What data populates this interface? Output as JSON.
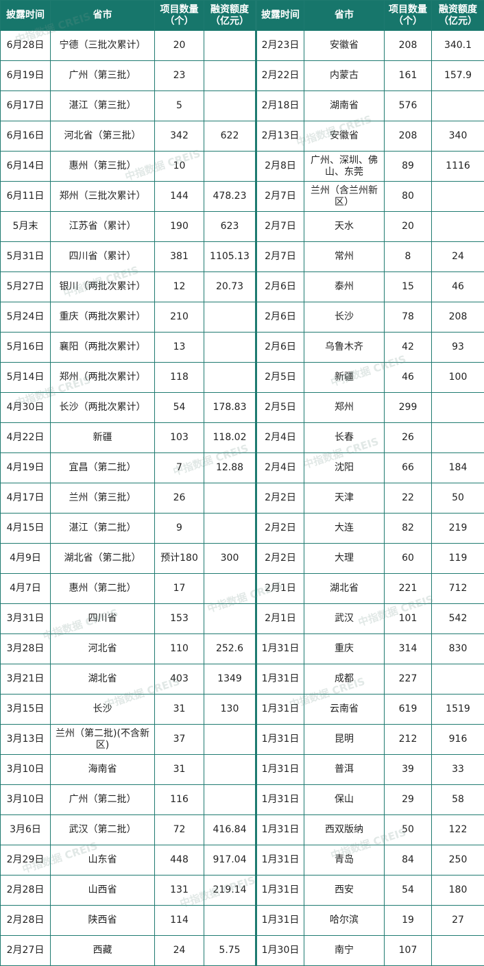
{
  "table": {
    "header": [
      [
        "披露时间"
      ],
      [
        "省市"
      ],
      [
        "项目数量",
        "（个）"
      ],
      [
        "融资额度",
        "（亿元）"
      ],
      [
        "披露时间"
      ],
      [
        "省市"
      ],
      [
        "项目数量",
        "（个）"
      ],
      [
        "融资额度",
        "（亿元）"
      ]
    ],
    "rows": [
      [
        "6月28日",
        "宁德（三批次累计）",
        20,
        null,
        "2月23日",
        "安徽省",
        208,
        340.1
      ],
      [
        "6月19日",
        "广州（第三批）",
        23,
        null,
        "2月22日",
        "内蒙古",
        161,
        157.9
      ],
      [
        "6月17日",
        "湛江（第三批）",
        5,
        null,
        "2月18日",
        "湖南省",
        576,
        null
      ],
      [
        "6月16日",
        "河北省（第三批）",
        342,
        622,
        "2月13日",
        "安徽省",
        208,
        340
      ],
      [
        "6月14日",
        "惠州（第三批）",
        10,
        null,
        "2月8日",
        "广州、深圳、佛山、东莞",
        89,
        1116
      ],
      [
        "6月11日",
        "郑州（三批次累计）",
        144,
        478.23,
        "2月7日",
        "兰州（含兰州新区）",
        80,
        null
      ],
      [
        "5月末",
        "江苏省（累计）",
        190,
        623,
        "2月7日",
        "天水",
        20,
        null
      ],
      [
        "5月31日",
        "四川省（累计）",
        381,
        1105.13,
        "2月7日",
        "常州",
        8,
        24
      ],
      [
        "5月27日",
        "银川（两批次累计）",
        12,
        20.73,
        "2月6日",
        "泰州",
        15,
        46
      ],
      [
        "5月24日",
        "重庆（两批次累计）",
        210,
        null,
        "2月6日",
        "长沙",
        78,
        208
      ],
      [
        "5月16日",
        "襄阳（两批次累计）",
        13,
        null,
        "2月6日",
        "乌鲁木齐",
        42,
        93
      ],
      [
        "5月14日",
        "郑州（两批次累计）",
        118,
        null,
        "2月5日",
        "新疆",
        46,
        100
      ],
      [
        "4月30日",
        "长沙（两批次累计）",
        54,
        178.83,
        "2月5日",
        "郑州",
        299,
        null
      ],
      [
        "4月22日",
        "新疆",
        103,
        118.02,
        "2月4日",
        "长春",
        26,
        null
      ],
      [
        "4月19日",
        "宜昌（第二批）",
        7,
        12.88,
        "2月4日",
        "沈阳",
        66,
        184
      ],
      [
        "4月17日",
        "兰州（第三批）",
        26,
        null,
        "2月2日",
        "天津",
        22,
        50
      ],
      [
        "4月15日",
        "湛江（第二批）",
        9,
        null,
        "2月2日",
        "大连",
        82,
        219
      ],
      [
        "4月9日",
        "湖北省（第二批）",
        "预计180",
        300,
        "2月2日",
        "大理",
        60,
        119
      ],
      [
        "4月7日",
        "惠州（第二批）",
        17,
        null,
        "2月1日",
        "湖北省",
        221,
        712
      ],
      [
        "3月31日",
        "四川省",
        153,
        null,
        "2月1日",
        "武汉",
        101,
        542
      ],
      [
        "3月28日",
        "河北省",
        110,
        252.6,
        "1月31日",
        "重庆",
        314,
        830
      ],
      [
        "3月21日",
        "湖北省",
        403,
        1349,
        "1月31日",
        "成都",
        227,
        null
      ],
      [
        "3月15日",
        "长沙",
        31,
        130,
        "1月31日",
        "云南省",
        619,
        1519
      ],
      [
        "3月13日",
        "兰州（第二批)(不含新区)",
        37,
        null,
        "1月31日",
        "昆明",
        212,
        916
      ],
      [
        "3月10日",
        "海南省",
        31,
        null,
        "1月31日",
        "普洱",
        39,
        33
      ],
      [
        "3月10日",
        "广州（第二批）",
        116,
        null,
        "1月31日",
        "保山",
        29,
        58
      ],
      [
        "3月6日",
        "武汉（第二批）",
        72,
        416.84,
        "1月31日",
        "西双版纳",
        50,
        122
      ],
      [
        "2月29日",
        "山东省",
        448,
        917.04,
        "1月31日",
        "青岛",
        84,
        250
      ],
      [
        "2月28日",
        "山西省",
        131,
        219.14,
        "1月31日",
        "西安",
        54,
        180
      ],
      [
        "2月28日",
        "陕西省",
        114,
        null,
        "1月31日",
        "哈尔滨",
        19,
        27
      ],
      [
        "2月27日",
        "西藏",
        24,
        5.75,
        "1月30日",
        "南宁",
        107,
        null
      ]
    ]
  },
  "watermark": "中指数据 CREIS"
}
